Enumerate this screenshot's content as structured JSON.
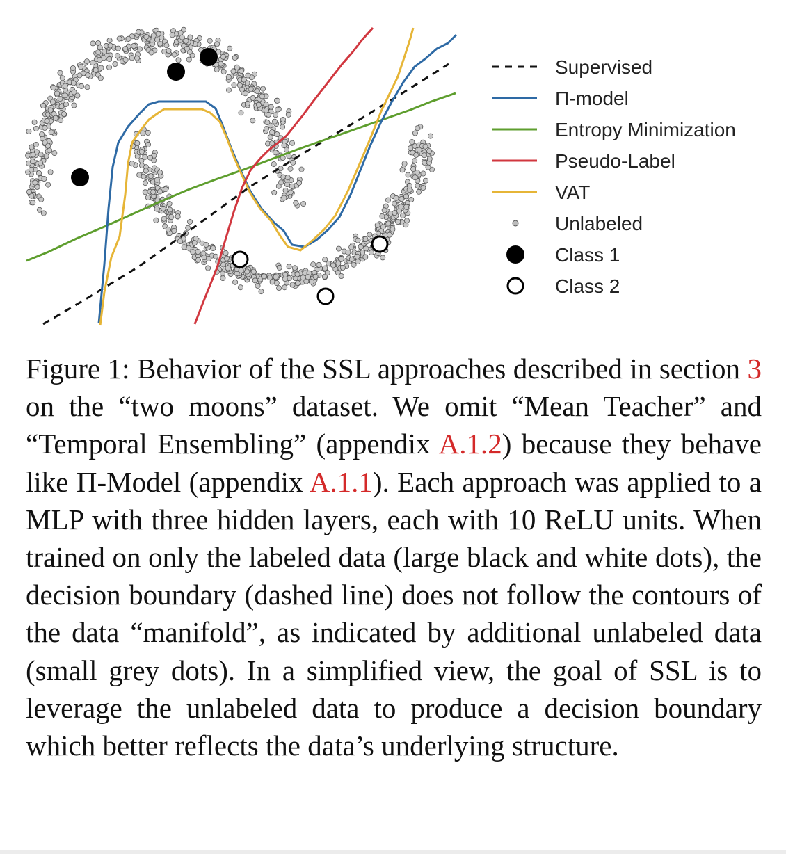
{
  "figure": {
    "legend": [
      {
        "key": "supervised",
        "label": "Supervised",
        "style": "dashed",
        "color": "#111111"
      },
      {
        "key": "pi_model",
        "label": "Π-model",
        "style": "line",
        "color": "#2e6aa5"
      },
      {
        "key": "entropy_min",
        "label": "Entropy Minimization",
        "style": "line",
        "color": "#5e9e2e"
      },
      {
        "key": "pseudo_label",
        "label": "Pseudo-Label",
        "style": "line",
        "color": "#d1373f"
      },
      {
        "key": "vat",
        "label": "VAT",
        "style": "line",
        "color": "#e6b537"
      },
      {
        "key": "unlabeled",
        "label": "Unlabeled",
        "style": "small-dot",
        "color": "#bbbbbb"
      },
      {
        "key": "class1",
        "label": "Class 1",
        "style": "filled-dot",
        "color": "#000000"
      },
      {
        "key": "class2",
        "label": "Class 2",
        "style": "open-dot",
        "color": "#000000"
      }
    ]
  },
  "caption": {
    "prefix": "Figure 1: Behavior of the SSL approaches described in section ",
    "ref_section": "3",
    "part2": " on the “two moons” dataset. We omit “Mean Teacher” and “Temporal Ensembling” (appendix ",
    "ref_a12": "A.1.2",
    "part3": ") because they behave like Π-Model (appendix ",
    "ref_a11": "A.1.1",
    "part4": "). Each approach was applied to a MLP with three hidden layers, each with 10 ReLU units. When trained on only the labeled data (large black and white dots), the decision boundary (dashed line) does not follow the contours of the data “manifold”, as indicated by additional unlabeled data (small grey dots). In a simplified view, the goal of SSL is to leverage the unlabeled data to produce a decision boundary which better reflects the data’s underlying structure."
  }
}
